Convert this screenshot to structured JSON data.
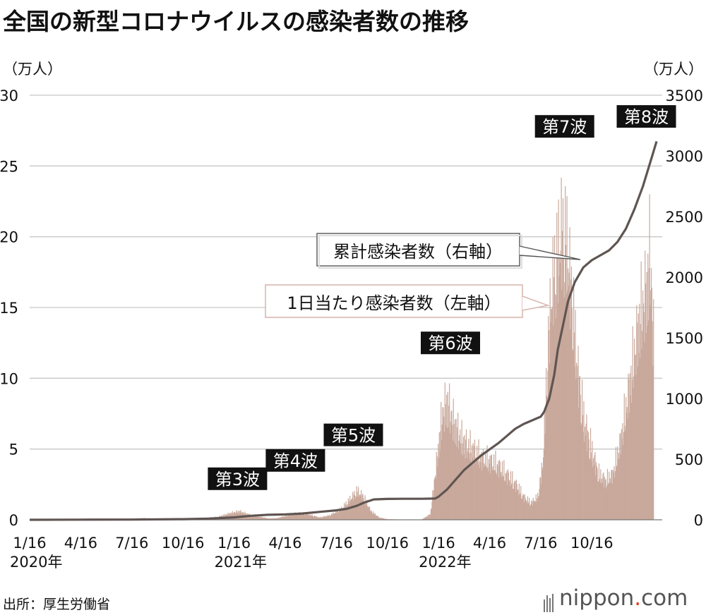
{
  "title": "全国の新型コロナウイルスの感染者数の推移",
  "source": "出所：厚生労働省",
  "logo": {
    "main": "nippon",
    "dot": ".",
    "tld": "com"
  },
  "colors": {
    "bars": "#c9a99c",
    "line": "#5f5552",
    "grid": "#c8c8c8",
    "label_bg": "#111111",
    "legend_accent": "#d9b7b0"
  },
  "chart_data": {
    "type": "bar+line",
    "title": "全国の新型コロナウイルスの感染者数の推移",
    "left_axis": {
      "label": "（万人）",
      "range": [
        0,
        30
      ],
      "ticks": [
        0,
        5,
        10,
        15,
        20,
        25,
        30
      ]
    },
    "right_axis": {
      "label": "（万人）",
      "range": [
        0,
        3500
      ],
      "ticks": [
        0,
        500,
        1000,
        1500,
        2000,
        2500,
        3000,
        3500
      ]
    },
    "x_ticks": [
      {
        "label": "1/16",
        "sub": "2020年",
        "month": 0
      },
      {
        "label": "4/16",
        "month": 3
      },
      {
        "label": "7/16",
        "month": 6
      },
      {
        "label": "10/16",
        "month": 9
      },
      {
        "label": "1/16",
        "sub": "2021年",
        "month": 12
      },
      {
        "label": "4/16",
        "month": 15
      },
      {
        "label": "7/16",
        "month": 18
      },
      {
        "label": "10/16",
        "month": 21
      },
      {
        "label": "1/16",
        "sub": "2022年",
        "month": 24
      },
      {
        "label": "4/16",
        "month": 27
      },
      {
        "label": "7/16",
        "month": 30
      },
      {
        "label": "10/16",
        "month": 33
      }
    ],
    "series": [
      {
        "name": "1日当たり感染者数（左軸）",
        "kind": "bar",
        "axis": "left",
        "unit": "万人",
        "points": [
          [
            0,
            0
          ],
          [
            2,
            0.01
          ],
          [
            3,
            0.05
          ],
          [
            4,
            0.03
          ],
          [
            5,
            0.01
          ],
          [
            6,
            0.1
          ],
          [
            6.7,
            0.15
          ],
          [
            7.5,
            0.08
          ],
          [
            9,
            0.06
          ],
          [
            10,
            0.12
          ],
          [
            11,
            0.25
          ],
          [
            11.8,
            0.6
          ],
          [
            12.3,
            0.75
          ],
          [
            13,
            0.4
          ],
          [
            14,
            0.12
          ],
          [
            14.5,
            0.15
          ],
          [
            15.3,
            0.45
          ],
          [
            15.8,
            0.6
          ],
          [
            16.3,
            0.5
          ],
          [
            17,
            0.2
          ],
          [
            17.6,
            0.4
          ],
          [
            18.3,
            1.0
          ],
          [
            18.9,
            2.0
          ],
          [
            19.2,
            2.55
          ],
          [
            19.6,
            2.0
          ],
          [
            20,
            0.8
          ],
          [
            20.5,
            0.2
          ],
          [
            21,
            0.05
          ],
          [
            22,
            0.02
          ],
          [
            23,
            0.03
          ],
          [
            23.5,
            0.5
          ],
          [
            23.9,
            5.5
          ],
          [
            24.2,
            9.5
          ],
          [
            24.5,
            10.5
          ],
          [
            24.9,
            8.5
          ],
          [
            25.4,
            7.0
          ],
          [
            26,
            6.2
          ],
          [
            26.5,
            5.5
          ],
          [
            27,
            5.2
          ],
          [
            27.5,
            4.8
          ],
          [
            28,
            4.0
          ],
          [
            28.5,
            3.2
          ],
          [
            29,
            2.0
          ],
          [
            29.4,
            1.5
          ],
          [
            29.8,
            2.0
          ],
          [
            30.1,
            5.0
          ],
          [
            30.4,
            15.0
          ],
          [
            30.6,
            20.0
          ],
          [
            30.9,
            23.0
          ],
          [
            31.2,
            25.5
          ],
          [
            31.5,
            24.5
          ],
          [
            31.8,
            20.0
          ],
          [
            32.1,
            14.0
          ],
          [
            32.5,
            9.0
          ],
          [
            33,
            6.0
          ],
          [
            33.4,
            4.0
          ],
          [
            33.8,
            3.5
          ],
          [
            34.2,
            4.0
          ],
          [
            34.6,
            6.5
          ],
          [
            35,
            10.0
          ],
          [
            35.4,
            14.0
          ],
          [
            35.8,
            18.0
          ],
          [
            36.2,
            20.5
          ],
          [
            36.4,
            24.0
          ],
          [
            36.6,
            16.0
          ]
        ]
      },
      {
        "name": "累計感染者数（右軸）",
        "kind": "line",
        "axis": "right",
        "unit": "万人",
        "points": [
          [
            0,
            0
          ],
          [
            3,
            1
          ],
          [
            6,
            2
          ],
          [
            9,
            5
          ],
          [
            10.5,
            10
          ],
          [
            12,
            20
          ],
          [
            13,
            33
          ],
          [
            14,
            41
          ],
          [
            15,
            44
          ],
          [
            16,
            52
          ],
          [
            17,
            65
          ],
          [
            18,
            78
          ],
          [
            18.6,
            90
          ],
          [
            19.2,
            115
          ],
          [
            19.6,
            140
          ],
          [
            20.2,
            168
          ],
          [
            21,
            172
          ],
          [
            22,
            173
          ],
          [
            23,
            173.5
          ],
          [
            23.8,
            175
          ],
          [
            24,
            190
          ],
          [
            24.5,
            250
          ],
          [
            25,
            330
          ],
          [
            25.5,
            410
          ],
          [
            26,
            470
          ],
          [
            26.5,
            530
          ],
          [
            27,
            580
          ],
          [
            27.5,
            630
          ],
          [
            28,
            690
          ],
          [
            28.5,
            750
          ],
          [
            29,
            790
          ],
          [
            29.5,
            820
          ],
          [
            30,
            850
          ],
          [
            30.2,
            890
          ],
          [
            30.5,
            1000
          ],
          [
            30.8,
            1200
          ],
          [
            31,
            1400
          ],
          [
            31.3,
            1600
          ],
          [
            31.6,
            1800
          ],
          [
            32,
            1960
          ],
          [
            32.5,
            2080
          ],
          [
            33,
            2140
          ],
          [
            33.5,
            2180
          ],
          [
            34,
            2220
          ],
          [
            34.5,
            2290
          ],
          [
            35,
            2400
          ],
          [
            35.5,
            2560
          ],
          [
            36,
            2750
          ],
          [
            36.5,
            2980
          ],
          [
            36.8,
            3120
          ]
        ]
      }
    ],
    "annotations": [
      {
        "text": "第3波",
        "month": 12.2,
        "value": 2.3
      },
      {
        "text": "第4波",
        "month": 15.6,
        "value": 3.6
      },
      {
        "text": "第5波",
        "month": 19.0,
        "value": 5.4
      },
      {
        "text": "第6波",
        "month": 24.7,
        "value": 11.9
      },
      {
        "text": "第7波",
        "month": 31.4,
        "value": 27.2
      },
      {
        "text": "第8波",
        "month": 36.2,
        "value": 27.9
      }
    ],
    "legend": [
      {
        "text": "累計感染者数（右軸）",
        "series": "line"
      },
      {
        "text": "1日当たり感染者数（左軸）",
        "series": "bar"
      }
    ]
  }
}
